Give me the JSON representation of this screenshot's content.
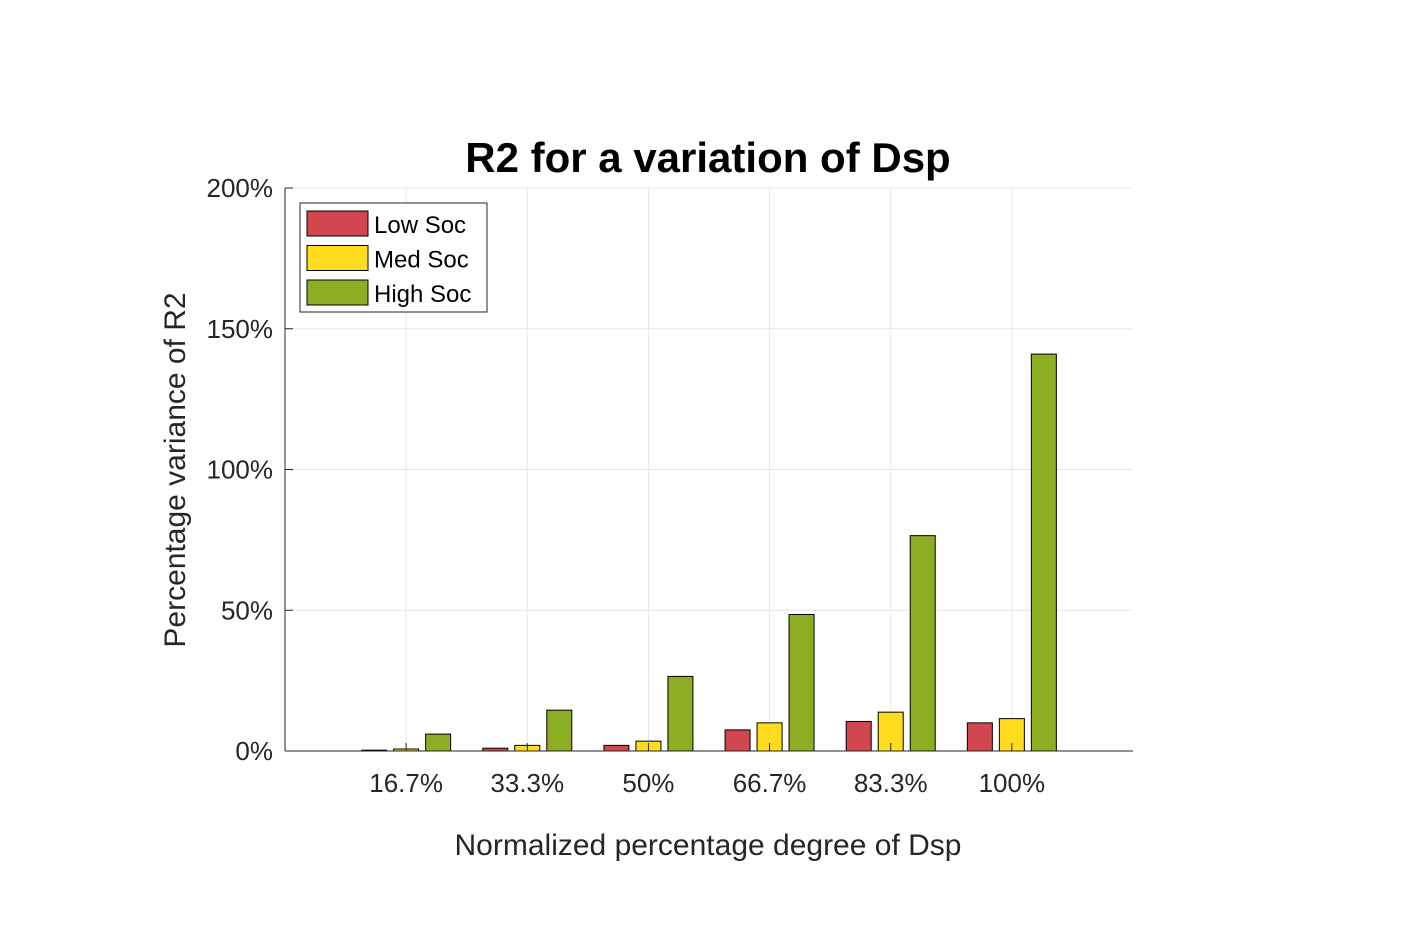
{
  "chart_data": {
    "type": "bar",
    "title": "R2 for a variation of Dsp",
    "xlabel": "Normalized percentage degree of Dsp",
    "ylabel": "Percentage variance of R2",
    "categories": [
      "16.7%",
      "33.3%",
      "50%",
      "66.7%",
      "83.3%",
      "100%"
    ],
    "series": [
      {
        "name": "Low Soc",
        "color": "#D2464F",
        "values": [
          0.3,
          1.0,
          2.0,
          7.5,
          10.5,
          10.0
        ]
      },
      {
        "name": "Med Soc",
        "color": "#FFDD1E",
        "values": [
          0.7,
          2.0,
          3.5,
          10.0,
          13.8,
          11.5
        ]
      },
      {
        "name": "High Soc",
        "color": "#8DAE22",
        "values": [
          6.0,
          14.5,
          26.5,
          48.5,
          76.5,
          141.0
        ]
      }
    ],
    "ylim": [
      0,
      200
    ],
    "yticks": [
      0,
      50,
      100,
      150,
      200
    ],
    "ytick_labels": [
      "0%",
      "50%",
      "100%",
      "150%",
      "200%"
    ],
    "grid": true,
    "legend_position": "top-left"
  }
}
